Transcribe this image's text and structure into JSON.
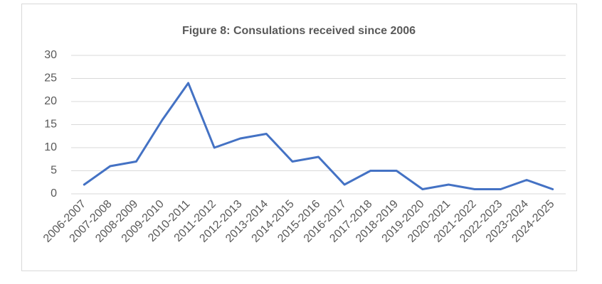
{
  "chart_data": {
    "type": "line",
    "title": "Figure 8: Consulations received since 2006",
    "categories": [
      "2006-2007",
      "2007-2008",
      "2008-2009",
      "2009-2010",
      "2010-2011",
      "2011-2012",
      "2012-2013",
      "2013-2014",
      "2014-2015",
      "2015-2016",
      "2016-2017",
      "2017-2018",
      "2018-2019",
      "2019-2020",
      "2020-2021",
      "2021-2022",
      "2022-2023",
      "2023-2024",
      "2024-2025"
    ],
    "values": [
      2,
      6,
      7,
      16,
      24,
      10,
      12,
      13,
      7,
      8,
      2,
      5,
      5,
      1,
      2,
      1,
      1,
      3,
      1
    ],
    "color": "#4472c4",
    "ylim": [
      0,
      30
    ],
    "yticks": [
      0,
      5,
      10,
      15,
      20,
      25,
      30
    ],
    "grid": true
  }
}
